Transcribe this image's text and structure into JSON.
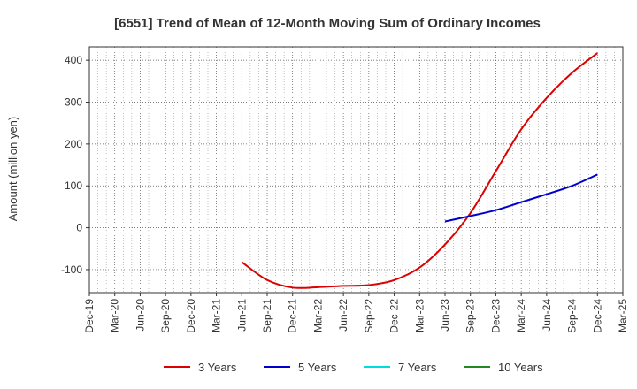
{
  "chart_data": {
    "type": "line",
    "title": "[6551]  Trend of Mean of 12-Month Moving Sum of Ordinary Incomes",
    "ylabel": "Amount (million yen)",
    "xlabel": "",
    "categories": [
      "Dec-19",
      "Mar-20",
      "Jun-20",
      "Sep-20",
      "Dec-20",
      "Mar-21",
      "Jun-21",
      "Sep-21",
      "Dec-21",
      "Mar-22",
      "Jun-22",
      "Sep-22",
      "Dec-22",
      "Mar-23",
      "Jun-23",
      "Sep-23",
      "Dec-23",
      "Mar-24",
      "Jun-24",
      "Sep-24",
      "Dec-24",
      "Mar-25"
    ],
    "ylim": [
      -155,
      432
    ],
    "yticks": [
      -100,
      0,
      100,
      200,
      300,
      400
    ],
    "ytick_labels": [
      "-100",
      "0",
      "100",
      "200",
      "300",
      "400"
    ],
    "grid": true,
    "legend_position": "bottom",
    "series": [
      {
        "name": "3 Years",
        "color": "#dd0000",
        "values": [
          null,
          null,
          null,
          null,
          null,
          null,
          -82,
          -125,
          -143,
          -142,
          -139,
          -137,
          -125,
          -95,
          -40,
          35,
          135,
          235,
          310,
          370,
          417,
          null
        ]
      },
      {
        "name": "5 Years",
        "color": "#0000cc",
        "values": [
          null,
          null,
          null,
          null,
          null,
          null,
          null,
          null,
          null,
          null,
          null,
          null,
          null,
          null,
          15,
          28,
          42,
          61,
          80,
          100,
          127,
          null
        ]
      },
      {
        "name": "7 Years",
        "color": "#00dddd",
        "values": [
          null,
          null,
          null,
          null,
          null,
          null,
          null,
          null,
          null,
          null,
          null,
          null,
          null,
          null,
          null,
          null,
          null,
          null,
          null,
          null,
          null,
          null
        ]
      },
      {
        "name": "10 Years",
        "color": "#228822",
        "values": [
          null,
          null,
          null,
          null,
          null,
          null,
          null,
          null,
          null,
          null,
          null,
          null,
          null,
          null,
          null,
          null,
          null,
          null,
          null,
          null,
          null,
          null
        ]
      }
    ]
  }
}
